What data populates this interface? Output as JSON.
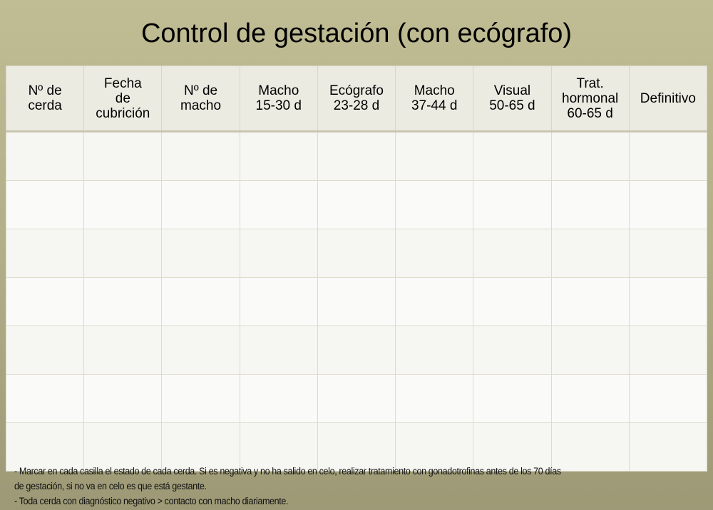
{
  "title": "Control de gestación (con ecógrafo)",
  "table": {
    "headers": [
      "Nº de\ncerda",
      "Fecha\nde\ncubrición",
      "Nº de\nmacho",
      "Macho\n15-30 d",
      "Ecógrafo\n23-28 d",
      "Macho\n37-44 d",
      "Visual\n50-65 d",
      "Trat.\nhormonal\n60-65 d",
      "Definitivo"
    ],
    "row_count": 7
  },
  "notes": [
    "- Marcar en cada casilla el estado de cada cerda. Si es negativa y no ha salido en celo, realizar tratamiento con gonadotrofinas antes de los 70 días",
    "de gestación, si no va en celo es que está gestante.",
    "- Toda cerda con diagnóstico negativo > contacto con macho diariamente."
  ]
}
